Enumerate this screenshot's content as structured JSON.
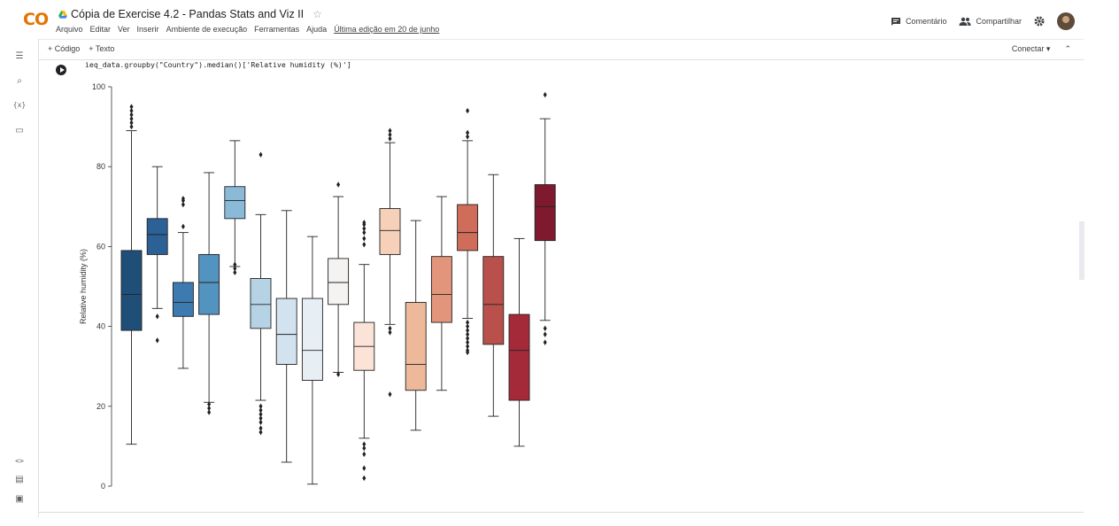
{
  "header": {
    "logo_text": "CO",
    "doc_title": "Cópia de Exercise 4.2 - Pandas Stats and Viz II",
    "menu": [
      "Arquivo",
      "Editar",
      "Ver",
      "Inserir",
      "Ambiente de execução",
      "Ferramentas",
      "Ajuda"
    ],
    "last_edit": "Última edição em 20 de junho",
    "comment_label": "Comentário",
    "share_label": "Compartilhar"
  },
  "toolbar": {
    "add_code": "+ Código",
    "add_text": "+ Texto",
    "connect": "Conectar"
  },
  "cell": {
    "code": "ieq_data.groupby(\"Country\").median()['Relative humidity (%)']"
  },
  "chart_data": {
    "type": "box",
    "ylabel": "Relative humidity (%)",
    "xlabel": "",
    "ylim": [
      0,
      100
    ],
    "yticks": [
      0,
      20,
      40,
      60,
      80,
      100
    ],
    "boxes": [
      {
        "q1": 39,
        "median": 48,
        "q3": 59,
        "wlo": 10.5,
        "whi": 89,
        "outliers": [
          90,
          91,
          92,
          93,
          94,
          95
        ],
        "color": "#1f4e79"
      },
      {
        "q1": 58,
        "median": 63,
        "q3": 67,
        "wlo": 44.5,
        "whi": 80,
        "outliers": [
          42.5,
          36.5
        ],
        "color": "#2c6196"
      },
      {
        "q1": 42.5,
        "median": 46,
        "q3": 51,
        "wlo": 29.5,
        "whi": 63.5,
        "outliers": [
          65,
          70.5,
          71.5,
          72
        ],
        "color": "#3d7ab0"
      },
      {
        "q1": 43,
        "median": 51,
        "q3": 58,
        "wlo": 21,
        "whi": 78.5,
        "outliers": [
          20.5,
          19.5,
          18.5
        ],
        "color": "#5393c0"
      },
      {
        "q1": 67,
        "median": 71.5,
        "q3": 75,
        "wlo": 55,
        "whi": 86.5,
        "outliers": [
          55.5,
          54.5,
          53.5
        ],
        "color": "#8bbad8"
      },
      {
        "q1": 39.5,
        "median": 45.5,
        "q3": 52,
        "wlo": 21.5,
        "whi": 68,
        "outliers": [
          83,
          20,
          19,
          18,
          17,
          16,
          14.5,
          13.5
        ],
        "color": "#b6d3e6"
      },
      {
        "q1": 30.5,
        "median": 38,
        "q3": 47,
        "wlo": 6,
        "whi": 69,
        "outliers": [],
        "color": "#d2e2ee"
      },
      {
        "q1": 26.5,
        "median": 34,
        "q3": 47,
        "wlo": 0.5,
        "whi": 62.5,
        "outliers": [],
        "color": "#e7eef4"
      },
      {
        "q1": 45.5,
        "median": 51,
        "q3": 57,
        "wlo": 28.5,
        "whi": 72.5,
        "outliers": [
          75.5,
          28
        ],
        "color": "#f5f3f2"
      },
      {
        "q1": 29,
        "median": 35,
        "q3": 41,
        "wlo": 12,
        "whi": 55.5,
        "outliers": [
          60.5,
          62,
          63.5,
          64.5,
          65.5,
          66,
          10.5,
          9.5,
          8,
          4.5,
          2
        ],
        "color": "#fbe3d8"
      },
      {
        "q1": 58,
        "median": 64,
        "q3": 69.5,
        "wlo": 40.5,
        "whi": 86,
        "outliers": [
          87,
          88,
          89,
          39.5,
          38.5,
          23
        ],
        "color": "#f6d0b8"
      },
      {
        "q1": 24,
        "median": 30.5,
        "q3": 46,
        "wlo": 14,
        "whi": 66.5,
        "outliers": [],
        "color": "#edb99a"
      },
      {
        "q1": 41,
        "median": 48,
        "q3": 57.5,
        "wlo": 24,
        "whi": 72.5,
        "outliers": [],
        "color": "#e2957a"
      },
      {
        "q1": 59,
        "median": 63.5,
        "q3": 70.5,
        "wlo": 42,
        "whi": 86.5,
        "outliers": [
          87.5,
          88.5,
          94,
          41,
          40,
          39,
          38,
          37,
          36,
          35,
          34,
          33.5
        ],
        "color": "#cf6d5a"
      },
      {
        "q1": 35.5,
        "median": 45.5,
        "q3": 57.5,
        "wlo": 17.5,
        "whi": 78,
        "outliers": [],
        "color": "#b9504b"
      },
      {
        "q1": 21.5,
        "median": 34,
        "q3": 43,
        "wlo": 10,
        "whi": 62,
        "outliers": [],
        "color": "#a42a3a"
      },
      {
        "q1": 61.5,
        "median": 70,
        "q3": 75.5,
        "wlo": 41.5,
        "whi": 92,
        "outliers": [
          98,
          39.5,
          38,
          36
        ],
        "color": "#7f1a2e"
      }
    ]
  }
}
